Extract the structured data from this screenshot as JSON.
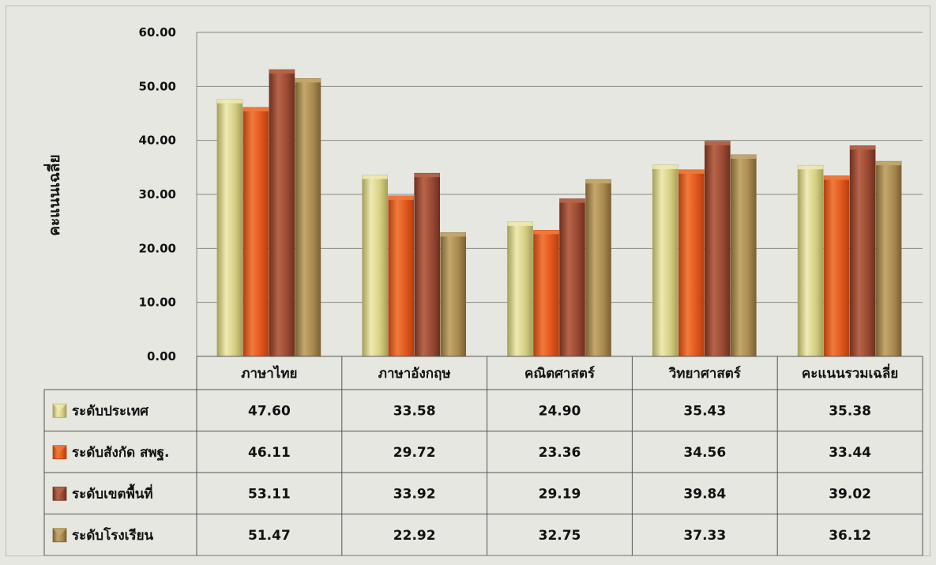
{
  "chart_data": {
    "type": "bar",
    "ylabel": "คะแนนเฉลี่ย",
    "ylim": [
      0,
      60
    ],
    "yticks": [
      "0.00",
      "10.00",
      "20.00",
      "30.00",
      "40.00",
      "50.00",
      "60.00"
    ],
    "grid": true,
    "legend_placement": "data-table-left",
    "categories": [
      "ภาษาไทย",
      "ภาษาอังกฤษ",
      "คณิตศาสตร์",
      "วิทยาศาสตร์",
      "คะแนนรวมเฉลี่ย"
    ],
    "series": [
      {
        "name": "ระดับประเทศ",
        "color": "#d6cf82",
        "dark": "#a6a059",
        "light": "#eeeab2",
        "values": [
          47.6,
          33.58,
          24.9,
          35.43,
          35.38
        ]
      },
      {
        "name": "ระดับสังกัด สพฐ.",
        "color": "#e2561c",
        "dark": "#b3400f",
        "light": "#f07a3c",
        "values": [
          46.11,
          29.72,
          23.36,
          34.56,
          33.44
        ]
      },
      {
        "name": "ระดับเขตพื้นที่",
        "color": "#9b4a33",
        "dark": "#6e301e",
        "light": "#b7654a",
        "values": [
          53.11,
          33.92,
          29.19,
          39.84,
          39.02
        ]
      },
      {
        "name": "ระดับโรงเรียน",
        "color": "#a98a4e",
        "dark": "#7a6133",
        "light": "#c4a76b",
        "values": [
          51.47,
          22.92,
          32.75,
          37.33,
          36.12
        ]
      }
    ],
    "table_values": [
      [
        "47.60",
        "33.58",
        "24.90",
        "35.43",
        "35.38"
      ],
      [
        "46.11",
        "29.72",
        "23.36",
        "34.56",
        "33.44"
      ],
      [
        "53.11",
        "33.92",
        "29.19",
        "39.84",
        "39.02"
      ],
      [
        "51.47",
        "22.92",
        "32.75",
        "37.33",
        "36.12"
      ]
    ]
  }
}
